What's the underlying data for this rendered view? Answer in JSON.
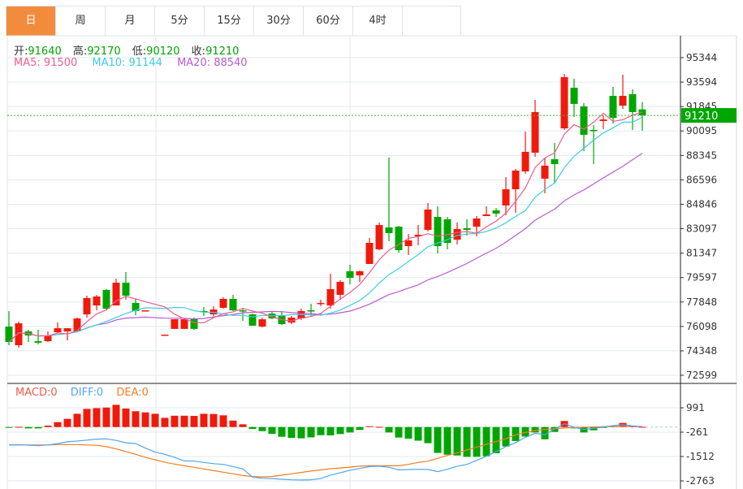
{
  "tabs": [
    {
      "label": "日",
      "active": true
    },
    {
      "label": "周"
    },
    {
      "label": "月"
    },
    {
      "label": "5分"
    },
    {
      "label": "15分"
    },
    {
      "label": "30分"
    },
    {
      "label": "60分"
    },
    {
      "label": "4时"
    }
  ],
  "ohlc": {
    "open_label": "开:",
    "open": "91640",
    "high_label": "高:",
    "high": "92170",
    "low_label": "低:",
    "low": "90120",
    "close_label": "收:",
    "close": "91210"
  },
  "ma": {
    "ma5": "MA5: 91500",
    "ma10": "MA10: 91144",
    "ma20": "MA20: 88540"
  },
  "macd_legend": {
    "macd": "MACD:0",
    "diff": "DIFF:0",
    "dea": "DEA:0"
  },
  "last_price_tag": "91210",
  "colors": {
    "up": "#f01a0c",
    "down": "#00a600",
    "tab_active": "#f28c3c",
    "ma5": "#ef5d8d",
    "ma10": "#3fcbe0",
    "ma20": "#b85bd0",
    "diff": "#4ea6f0",
    "dea": "#f57c22",
    "grid": "#e1eaf0"
  },
  "chart_data": {
    "type": "candlestick",
    "price_axis": {
      "ticks": [
        95344,
        93594,
        91845,
        90095,
        88345,
        86596,
        84846,
        83097,
        81347,
        79597,
        77848,
        76098,
        74348,
        72599
      ],
      "ylim": [
        72599,
        95344
      ]
    },
    "macd_axis": {
      "ticks": [
        991,
        -261,
        -1512,
        -2763
      ]
    },
    "candles": [
      [
        76090,
        77200,
        74750,
        74980
      ],
      [
        74750,
        76440,
        74580,
        76320
      ],
      [
        75740,
        75860,
        74980,
        75450
      ],
      [
        75040,
        75860,
        74810,
        74930
      ],
      [
        75040,
        75740,
        74980,
        75450
      ],
      [
        75680,
        76380,
        75620,
        75970
      ],
      [
        75740,
        75970,
        75100,
        75970
      ],
      [
        75740,
        76730,
        75680,
        76670
      ],
      [
        76960,
        78300,
        76730,
        78130
      ],
      [
        77600,
        78360,
        77250,
        78240
      ],
      [
        78710,
        78770,
        77250,
        77370
      ],
      [
        77600,
        79520,
        77600,
        79230
      ],
      [
        79230,
        79990,
        78010,
        78300
      ],
      [
        77780,
        78070,
        76900,
        77200
      ],
      [
        77200,
        77250,
        77200,
        77250
      ],
      null,
      [
        75480,
        75510,
        75480,
        75510
      ],
      [
        75920,
        76610,
        75920,
        76610
      ],
      [
        75920,
        76610,
        75920,
        76610
      ],
      [
        76670,
        76730,
        75860,
        75920
      ],
      [
        77200,
        77490,
        76850,
        77140
      ],
      [
        76960,
        77540,
        76850,
        77310
      ],
      [
        77430,
        78180,
        77370,
        78070
      ],
      [
        78070,
        78360,
        77200,
        77250
      ],
      [
        77250,
        77370,
        76500,
        77200
      ],
      [
        76960,
        77020,
        76150,
        76150
      ],
      [
        76090,
        76730,
        76030,
        76610
      ],
      [
        77020,
        77140,
        76610,
        76670
      ],
      [
        76900,
        77200,
        76210,
        76260
      ],
      [
        76380,
        76850,
        76260,
        76730
      ],
      [
        76670,
        77370,
        76560,
        77200
      ],
      [
        77250,
        77720,
        76850,
        77200
      ],
      [
        77720,
        78010,
        77540,
        77780
      ],
      [
        77600,
        79870,
        77370,
        78770
      ],
      [
        78360,
        79410,
        78010,
        79290
      ],
      [
        80050,
        80510,
        79110,
        79580
      ],
      [
        79750,
        80100,
        79290,
        80050
      ],
      [
        80570,
        82430,
        80570,
        82080
      ],
      [
        81620,
        83540,
        81560,
        83360
      ],
      [
        83190,
        88190,
        82200,
        82780
      ],
      [
        83240,
        83300,
        81380,
        81560
      ],
      [
        81850,
        82720,
        81210,
        82260
      ],
      [
        82550,
        83360,
        81910,
        82660
      ],
      [
        83010,
        84930,
        82900,
        84470
      ],
      [
        83940,
        84700,
        81330,
        81850
      ],
      [
        83770,
        83940,
        81620,
        82080
      ],
      [
        82310,
        83540,
        81970,
        83070
      ],
      [
        83130,
        83770,
        82600,
        83010
      ],
      [
        83240,
        84000,
        82550,
        83830
      ],
      [
        84000,
        84700,
        84000,
        84120
      ],
      [
        84410,
        84580,
        83940,
        84180
      ],
      [
        84760,
        86790,
        84060,
        85920
      ],
      [
        85920,
        87380,
        84230,
        87260
      ],
      [
        87200,
        90050,
        87030,
        88600
      ],
      [
        88540,
        92320,
        88250,
        91450
      ],
      [
        86680,
        88190,
        85630,
        87610
      ],
      [
        88070,
        89240,
        86330,
        87720
      ],
      [
        90280,
        94180,
        90170,
        93950
      ],
      [
        93190,
        93830,
        91100,
        92030
      ],
      [
        91850,
        92090,
        88650,
        89820
      ],
      [
        90170,
        90520,
        87720,
        90110
      ],
      [
        90810,
        91210,
        90230,
        90920
      ],
      [
        92610,
        93250,
        90630,
        91040
      ],
      [
        91910,
        94120,
        91680,
        92610
      ],
      [
        92730,
        93080,
        90170,
        91450
      ],
      [
        91640,
        92170,
        90120,
        91210
      ]
    ],
    "macd": [
      -30,
      10,
      -70,
      -70,
      70,
      250,
      420,
      680,
      930,
      970,
      1000,
      1140,
      950,
      810,
      750,
      680,
      470,
      580,
      580,
      570,
      680,
      670,
      600,
      330,
      140,
      -100,
      -210,
      -350,
      -500,
      -560,
      -580,
      -530,
      -420,
      -430,
      -360,
      -280,
      -150,
      40,
      10,
      -280,
      -540,
      -600,
      -700,
      -830,
      -1330,
      -1420,
      -1460,
      -1530,
      -1530,
      -1500,
      -1350,
      -1000,
      -720,
      -490,
      -280,
      -630,
      -250,
      310,
      -70,
      -280,
      -170,
      -30,
      40,
      210,
      40,
      10
    ],
    "diff": [
      -920,
      -900,
      -930,
      -960,
      -920,
      -850,
      -760,
      -720,
      -670,
      -620,
      -610,
      -690,
      -810,
      -850,
      -1080,
      -1290,
      -1400,
      -1560,
      -1740,
      -1750,
      -1820,
      -1880,
      -1920,
      -2030,
      -2150,
      -2570,
      -2630,
      -2650,
      -2680,
      -2710,
      -2720,
      -2710,
      -2650,
      -2470,
      -2350,
      -2220,
      -2130,
      -2030,
      -2010,
      -2070,
      -2200,
      -2180,
      -2170,
      -2180,
      -2290,
      -2170,
      -2010,
      -1920,
      -1710,
      -1500,
      -1260,
      -1010,
      -810,
      -530,
      -320,
      -390,
      -110,
      170,
      -10,
      -120,
      -70,
      0,
      70,
      130,
      60,
      20
    ],
    "dea": [
      -920,
      -920,
      -920,
      -920,
      -920,
      -900,
      -900,
      -900,
      -920,
      -940,
      -1010,
      -1120,
      -1260,
      -1400,
      -1560,
      -1680,
      -1810,
      -1900,
      -1990,
      -2070,
      -2150,
      -2240,
      -2320,
      -2400,
      -2490,
      -2540,
      -2560,
      -2540,
      -2470,
      -2400,
      -2330,
      -2260,
      -2200,
      -2140,
      -2100,
      -2060,
      -2010,
      -1990,
      -1990,
      -1990,
      -1990,
      -1920,
      -1820,
      -1750,
      -1610,
      -1460,
      -1320,
      -1180,
      -1040,
      -890,
      -740,
      -600,
      -400,
      -280,
      -180,
      -120,
      -80,
      -50,
      -30,
      -10,
      0,
      20,
      30,
      40,
      40,
      20
    ],
    "last_price": 91210,
    "grid": true
  }
}
